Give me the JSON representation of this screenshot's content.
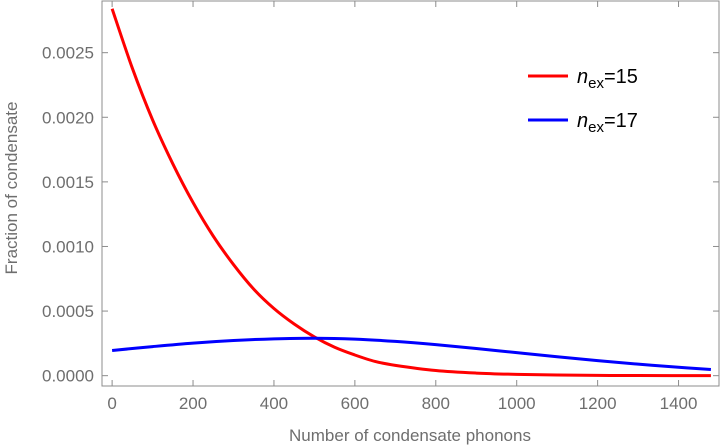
{
  "chart_data": {
    "type": "line",
    "xlabel": "Number of condensate phonons",
    "ylabel": "Fraction of condensate",
    "xlim": [
      -25,
      1500
    ],
    "ylim": [
      -8e-05,
      0.0029
    ],
    "xticks": [
      0,
      200,
      400,
      600,
      800,
      1000,
      1200,
      1400
    ],
    "xtick_labels": [
      "0",
      "200",
      "400",
      "600",
      "800",
      "1000",
      "1200",
      "1400"
    ],
    "yticks": [
      0.0,
      0.0005,
      0.001,
      0.0015,
      0.002,
      0.0025
    ],
    "ytick_labels": [
      "0.0000",
      "0.0005",
      "0.0010",
      "0.0015",
      "0.0020",
      "0.0025"
    ],
    "grid": false,
    "legend_position": "top-right",
    "series": [
      {
        "name": "n_ex=15",
        "legend_main": "n",
        "legend_sub": "ex",
        "legend_rest": "=15",
        "color": "#ff0000",
        "x": [
          0,
          50,
          100,
          150,
          200,
          250,
          300,
          350,
          400,
          450,
          500,
          550,
          600,
          650,
          700,
          800,
          900,
          1000,
          1100,
          1200,
          1300,
          1480
        ],
        "y": [
          0.00284,
          0.00238,
          0.00198,
          0.00164,
          0.00134,
          0.00108,
          0.00086,
          0.00067,
          0.00052,
          0.0004,
          0.0003,
          0.00022,
          0.00016,
          0.00011,
          8e-05,
          4e-05,
          2e-05,
          1e-05,
          5e-06,
          2e-06,
          1e-06,
          0.0
        ]
      },
      {
        "name": "n_ex=17",
        "legend_main": "n",
        "legend_sub": "ex",
        "legend_rest": "=17",
        "color": "#0000ff",
        "x": [
          0,
          100,
          200,
          300,
          400,
          500,
          600,
          700,
          800,
          900,
          1000,
          1100,
          1200,
          1300,
          1400,
          1480
        ],
        "y": [
          0.000195,
          0.000225,
          0.000252,
          0.000272,
          0.000285,
          0.00029,
          0.000283,
          0.000265,
          0.00024,
          0.00021,
          0.000178,
          0.000146,
          0.000116,
          8.9e-05,
          6.5e-05,
          4.8e-05
        ]
      }
    ]
  }
}
